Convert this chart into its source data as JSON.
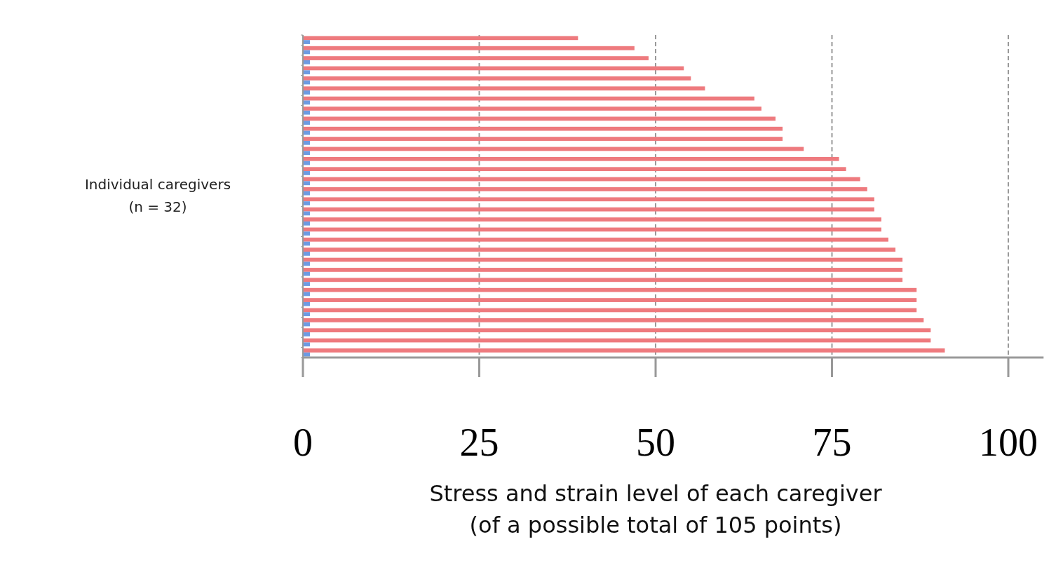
{
  "chart_data": {
    "type": "bar",
    "orientation": "horizontal",
    "xlabel": "Stress and strain level of each caregiver\n(of a possible total of 105 points)",
    "ylabel": "Individual caregivers\n(n = 32)",
    "categories": [
      null,
      null,
      null,
      null,
      null,
      null,
      null,
      null,
      null,
      null,
      null,
      null,
      null,
      null,
      null,
      null,
      null,
      null,
      null,
      null,
      null,
      null,
      null,
      null,
      null,
      null,
      null,
      null,
      null,
      null,
      null,
      null
    ],
    "series": [
      {
        "color": "#ee7a7e",
        "values": [
          39,
          47,
          49,
          54,
          55,
          57,
          64,
          65,
          67,
          68,
          68,
          71,
          76,
          77,
          79,
          80,
          81,
          81,
          82,
          82,
          83,
          84,
          85,
          85,
          85,
          87,
          87,
          87,
          88,
          89,
          89,
          91
        ]
      },
      {
        "color": "#6d9be3",
        "values": [
          1,
          1,
          1,
          1,
          1,
          1,
          1,
          1,
          1,
          1,
          1,
          1,
          1,
          1,
          1,
          1,
          1,
          1,
          1,
          1,
          1,
          1,
          1,
          1,
          1,
          1,
          1,
          1,
          1,
          1,
          1,
          1
        ]
      }
    ],
    "xlim": [
      0,
      105
    ],
    "xticks": [
      0,
      25,
      50,
      75,
      100
    ],
    "grid": "x"
  }
}
